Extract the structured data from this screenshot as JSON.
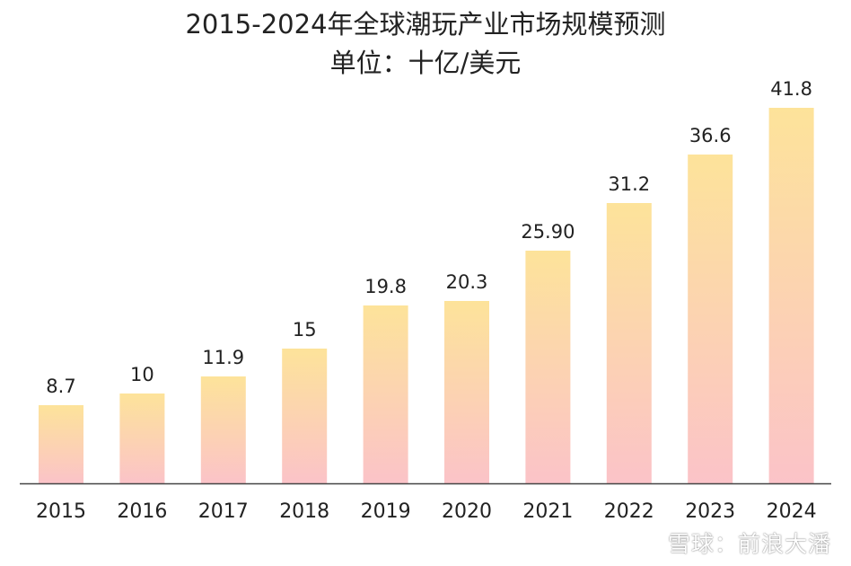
{
  "chart_data": {
    "type": "bar",
    "title": "2015-2024年全球潮玩产业市场规模预测",
    "subtitle": "单位：十亿/美元",
    "categories": [
      "2015",
      "2016",
      "2017",
      "2018",
      "2019",
      "2020",
      "2021",
      "2022",
      "2023",
      "2024"
    ],
    "values": [
      8.7,
      10,
      11.9,
      15,
      19.8,
      20.3,
      25.9,
      31.2,
      36.6,
      41.8
    ],
    "value_labels": [
      "8.7",
      "10",
      "11.9",
      "15",
      "19.8",
      "20.3",
      "25.90",
      "31.2",
      "36.6",
      "41.8"
    ],
    "xlabel": "",
    "ylabel": "",
    "ylim": [
      0,
      41.8
    ],
    "grid": false,
    "legend": "none",
    "bar_gradient": {
      "top": "#fde39a",
      "bottom": "#fbc3c8"
    },
    "axis_color": "#444444"
  },
  "watermark": {
    "text": "雪球：前浪大潘",
    "icon": "snowball-logo-icon"
  }
}
